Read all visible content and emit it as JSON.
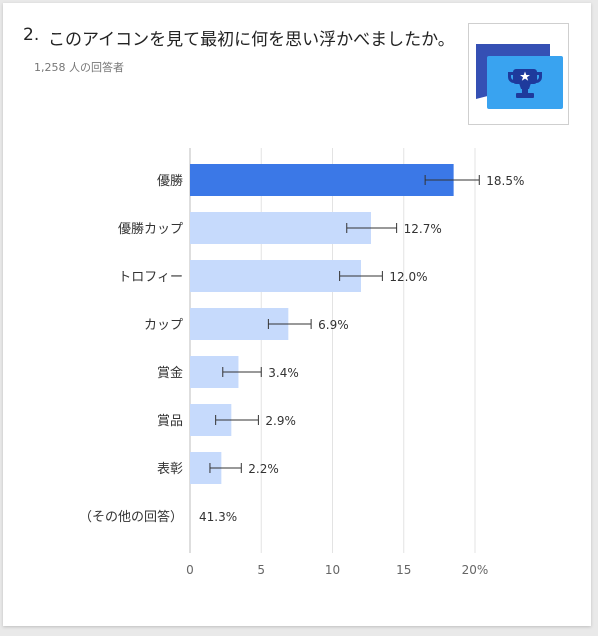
{
  "question": {
    "number": "2.",
    "text": "このアイコンを見て最初に何を思い浮かべましたか。",
    "responses": "1,258 人の回答者"
  },
  "icon": {
    "name": "trophy-card-icon",
    "colors": {
      "back": "#3550b4",
      "front": "#39a3f0",
      "trophy": "#1e3a9c"
    }
  },
  "colors": {
    "highlight_bar": "#3b78e7",
    "bar": "#c6dafc",
    "grid": "#e3e3e3",
    "error_bar": "#333333",
    "text": "#333333",
    "axis_text": "#666666"
  },
  "chart_data": {
    "type": "bar",
    "orientation": "horizontal",
    "categories": [
      "優勝",
      "優勝カップ",
      "トロフィー",
      "カップ",
      "賞金",
      "賞品",
      "表彰",
      "（その他の回答）"
    ],
    "values": [
      18.5,
      12.7,
      12.0,
      6.9,
      3.4,
      2.9,
      2.2,
      41.3
    ],
    "value_labels": [
      "18.5%",
      "12.7%",
      "12.0%",
      "6.9%",
      "3.4%",
      "2.9%",
      "2.2%",
      "41.3%"
    ],
    "error_low": [
      16.5,
      11.0,
      10.5,
      5.5,
      2.3,
      1.8,
      1.4,
      null
    ],
    "error_high": [
      20.3,
      14.5,
      13.5,
      8.5,
      5.0,
      4.8,
      3.6,
      null
    ],
    "bar_shown": [
      true,
      true,
      true,
      true,
      true,
      true,
      true,
      false
    ],
    "highlight_index": 0,
    "xlim": [
      0,
      20
    ],
    "x_ticks": [
      0,
      5,
      10,
      15,
      20
    ],
    "x_tick_labels": [
      "0",
      "5",
      "10",
      "15",
      "20%"
    ],
    "grid": true
  }
}
